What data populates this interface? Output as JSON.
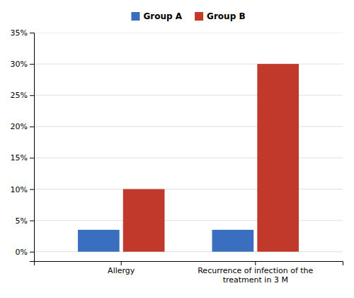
{
  "chart_data": {
    "type": "bar",
    "categories": [
      "Allergy",
      "Recurrence of infection of the\ntreatment in 3 M"
    ],
    "series": [
      {
        "name": "Group  A",
        "color": "#3A6EBF",
        "values": [
          3.5,
          3.5
        ]
      },
      {
        "name": "Group  B",
        "color": "#C0392B",
        "values": [
          10.0,
          30.0
        ]
      }
    ],
    "ylim": [
      -1.5,
      35
    ],
    "yticks": [
      {
        "value": 0,
        "label": "0%"
      },
      {
        "value": 5,
        "label": "5%"
      },
      {
        "value": 10,
        "label": "10%"
      },
      {
        "value": 15,
        "label": "15%"
      },
      {
        "value": 20,
        "label": "20%"
      },
      {
        "value": 25,
        "label": "25%"
      },
      {
        "value": 30,
        "label": "30%"
      },
      {
        "value": 35,
        "label": "35%"
      }
    ],
    "grid": true,
    "legend": "top"
  }
}
